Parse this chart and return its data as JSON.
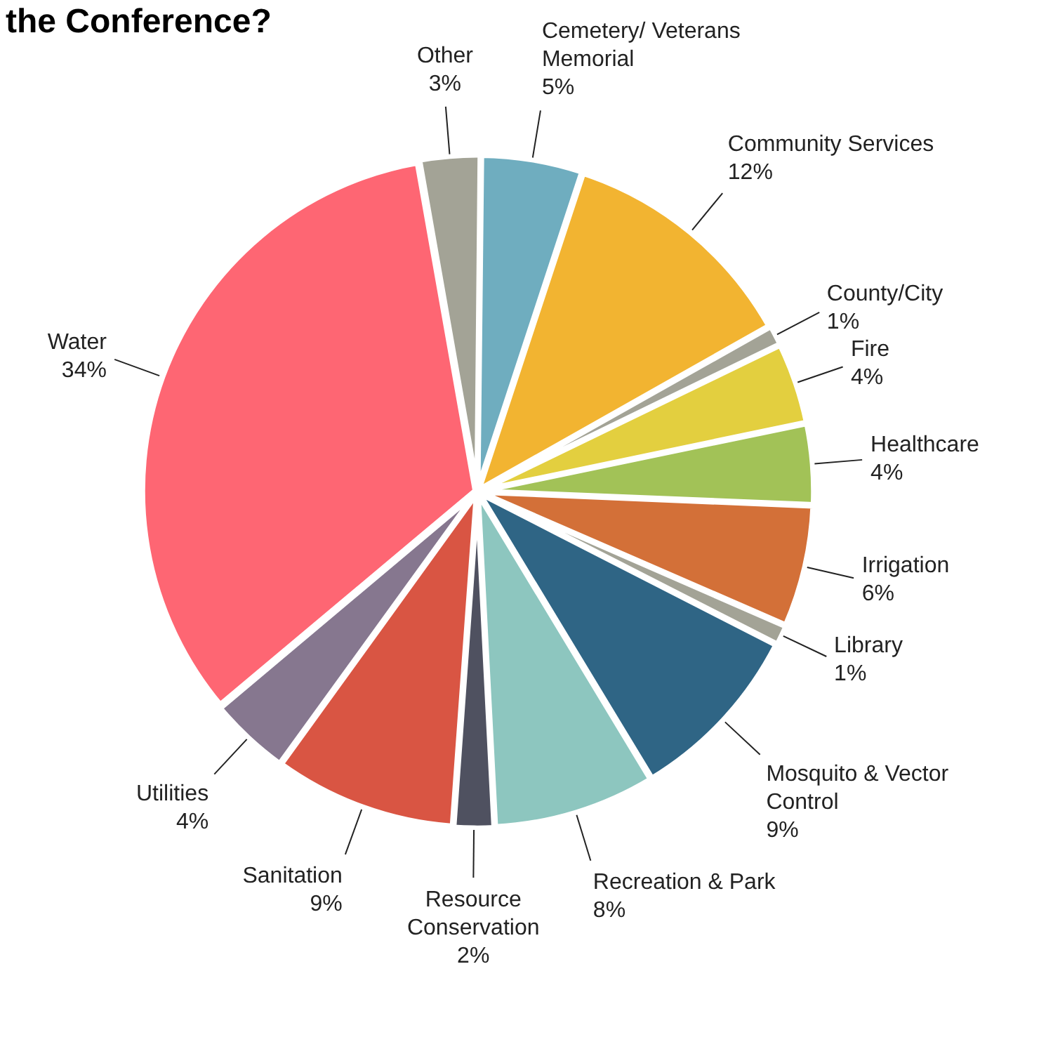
{
  "chart_data": {
    "type": "pie",
    "title": "the Conference?",
    "categories": [
      "Other",
      "Cemetery/ Veterans Memorial",
      "Community Services",
      "County/City",
      "Fire",
      "Healthcare",
      "Irrigation",
      "Library",
      "Mosquito & Vector Control",
      "Recreation & Park",
      "Resource Conservation",
      "Sanitation",
      "Utilities",
      "Water"
    ],
    "values": [
      3,
      5,
      12,
      1,
      4,
      4,
      6,
      1,
      9,
      8,
      2,
      9,
      4,
      34
    ],
    "value_labels": [
      "3%",
      "5%",
      "12%",
      "1%",
      "4%",
      "4%",
      "6%",
      "1%",
      "9%",
      "8%",
      "2%",
      "9%",
      "4%",
      "34%"
    ],
    "colors": [
      "#a3a396",
      "#6fadbf",
      "#f2b431",
      "#a3a396",
      "#e3cf3f",
      "#a2c257",
      "#d37038",
      "#a3a396",
      "#2f6585",
      "#8dc6bf",
      "#4f5160",
      "#d95543",
      "#86778f",
      "#fe6673"
    ]
  }
}
